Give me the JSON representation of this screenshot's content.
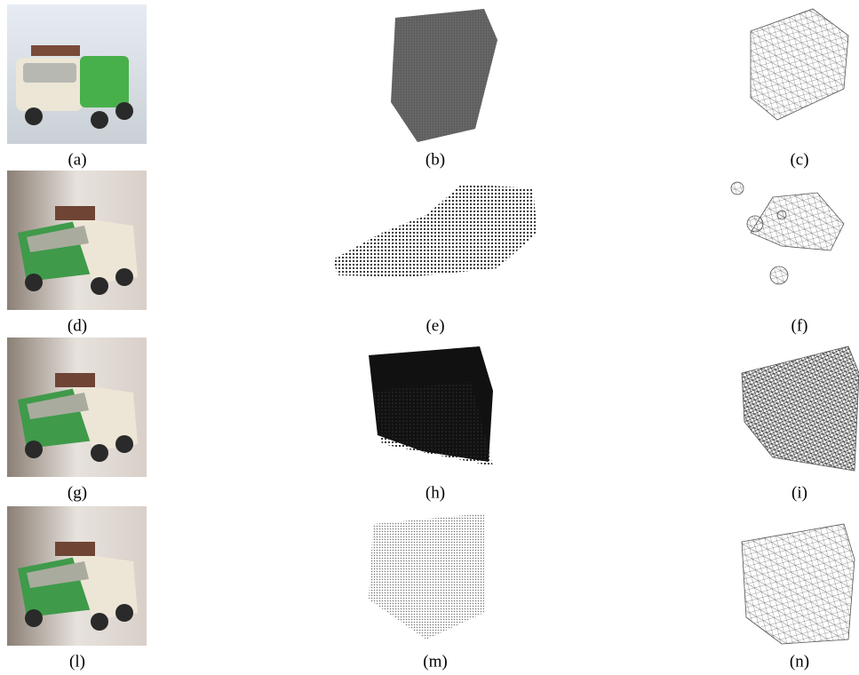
{
  "rows": [
    [
      "(a)",
      "(b)",
      "(c)"
    ],
    [
      "(d)",
      "(e)",
      "(f)"
    ],
    [
      "(g)",
      "(h)",
      "(i)"
    ],
    [
      "(l)",
      "(m)",
      "(n)"
    ]
  ]
}
